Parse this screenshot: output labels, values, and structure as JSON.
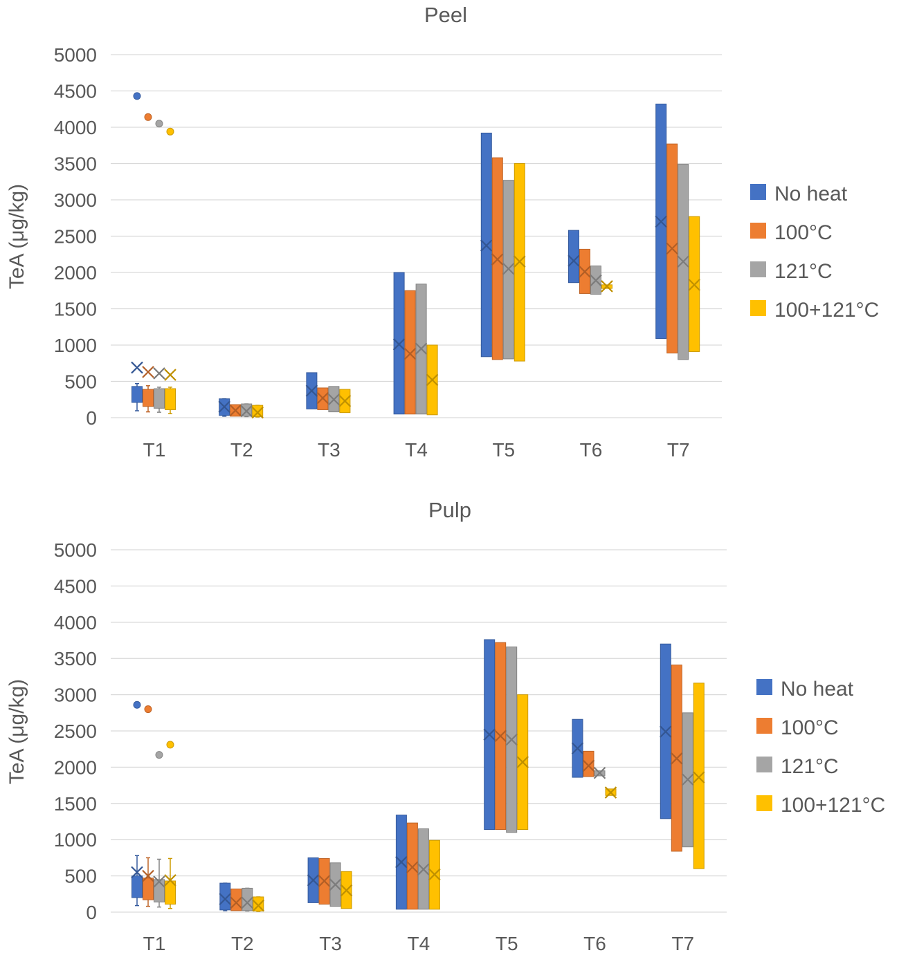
{
  "chart_data": [
    {
      "type": "box",
      "title": "Peel",
      "xlabel": "",
      "ylabel": "TeA (μg/kg)",
      "ylim": [
        0,
        5000
      ],
      "yticks": [
        "0",
        "500",
        "1000",
        "1500",
        "2000",
        "2500",
        "3000",
        "3500",
        "4000",
        "4500",
        "5000"
      ],
      "grid": true,
      "legend_position": "right",
      "categories": [
        "T1",
        "T2",
        "T3",
        "T4",
        "T5",
        "T6",
        "T7"
      ],
      "series": [
        {
          "name": "No heat",
          "color": "#4472c4",
          "boxes": [
            {
              "low": 95,
              "q1": 210,
              "q3": 430,
              "high": 470,
              "mean": 690,
              "outlier": 4430
            },
            {
              "low": 20,
              "q1": 30,
              "q3": 260,
              "high": 260,
              "mean": 150
            },
            {
              "low": 120,
              "q1": 120,
              "q3": 620,
              "high": 620,
              "mean": 370
            },
            {
              "low": 50,
              "q1": 50,
              "q3": 2000,
              "high": 2000,
              "mean": 1010
            },
            {
              "low": 840,
              "q1": 840,
              "q3": 3920,
              "high": 3920,
              "mean": 2370
            },
            {
              "low": 1860,
              "q1": 1860,
              "q3": 2580,
              "high": 2580,
              "mean": 2160
            },
            {
              "low": 1090,
              "q1": 1090,
              "q3": 4320,
              "high": 4320,
              "mean": 2700
            }
          ]
        },
        {
          "name": "100°C",
          "color": "#ed7d31",
          "boxes": [
            {
              "low": 80,
              "q1": 155,
              "q3": 390,
              "high": 440,
              "mean": 630,
              "outlier": 4140
            },
            {
              "low": 20,
              "q1": 20,
              "q3": 180,
              "high": 180,
              "mean": 100
            },
            {
              "low": 110,
              "q1": 110,
              "q3": 410,
              "high": 410,
              "mean": 270
            },
            {
              "low": 50,
              "q1": 50,
              "q3": 1750,
              "high": 1750,
              "mean": 880
            },
            {
              "low": 800,
              "q1": 800,
              "q3": 3580,
              "high": 3580,
              "mean": 2180
            },
            {
              "low": 1710,
              "q1": 1710,
              "q3": 2320,
              "high": 2320,
              "mean": 2010
            },
            {
              "low": 890,
              "q1": 890,
              "q3": 3770,
              "high": 3770,
              "mean": 2330
            }
          ]
        },
        {
          "name": "121°C",
          "color": "#a5a5a5",
          "boxes": [
            {
              "low": 75,
              "q1": 130,
              "q3": 400,
              "high": 420,
              "mean": 610,
              "outlier": 4050
            },
            {
              "low": 15,
              "q1": 20,
              "q3": 190,
              "high": 190,
              "mean": 90
            },
            {
              "low": 80,
              "q1": 80,
              "q3": 430,
              "high": 430,
              "mean": 250
            },
            {
              "low": 50,
              "q1": 50,
              "q3": 1840,
              "high": 1840,
              "mean": 950
            },
            {
              "low": 810,
              "q1": 810,
              "q3": 3270,
              "high": 3270,
              "mean": 2050
            },
            {
              "low": 1700,
              "q1": 1700,
              "q3": 2090,
              "high": 2090,
              "mean": 1890
            },
            {
              "low": 800,
              "q1": 800,
              "q3": 3490,
              "high": 3490,
              "mean": 2150
            }
          ]
        },
        {
          "name": "100+121°C",
          "color": "#ffc000",
          "boxes": [
            {
              "low": 55,
              "q1": 110,
              "q3": 400,
              "high": 420,
              "mean": 590,
              "outlier": 3940
            },
            {
              "low": 10,
              "q1": 15,
              "q3": 170,
              "high": 170,
              "mean": 70
            },
            {
              "low": 70,
              "q1": 70,
              "q3": 390,
              "high": 390,
              "mean": 230
            },
            {
              "low": 40,
              "q1": 40,
              "q3": 1000,
              "high": 1000,
              "mean": 520
            },
            {
              "low": 780,
              "q1": 780,
              "q3": 3500,
              "high": 3500,
              "mean": 2150
            },
            {
              "low": 1780,
              "q1": 1780,
              "q3": 1830,
              "high": 1830,
              "mean": 1810
            },
            {
              "low": 910,
              "q1": 910,
              "q3": 2770,
              "high": 2770,
              "mean": 1830
            }
          ]
        }
      ]
    },
    {
      "type": "box",
      "title": "Pulp",
      "xlabel": "",
      "ylabel": "TeA (μg/kg)",
      "ylim": [
        0,
        5000
      ],
      "yticks": [
        "0",
        "500",
        "1000",
        "1500",
        "2000",
        "2500",
        "3000",
        "3500",
        "4000",
        "4500",
        "5000"
      ],
      "grid": true,
      "legend_position": "right",
      "categories": [
        "T1",
        "T2",
        "T3",
        "T4",
        "T5",
        "T6",
        "T7"
      ],
      "series": [
        {
          "name": "No heat",
          "color": "#4472c4",
          "boxes": [
            {
              "low": 90,
              "q1": 200,
              "q3": 500,
              "high": 780,
              "mean": 550,
              "outlier": 2860
            },
            {
              "low": 20,
              "q1": 30,
              "q3": 400,
              "high": 400,
              "mean": 180
            },
            {
              "low": 130,
              "q1": 130,
              "q3": 750,
              "high": 750,
              "mean": 440
            },
            {
              "low": 40,
              "q1": 40,
              "q3": 1340,
              "high": 1340,
              "mean": 690
            },
            {
              "low": 1140,
              "q1": 1140,
              "q3": 3760,
              "high": 3760,
              "mean": 2450
            },
            {
              "low": 1860,
              "q1": 1860,
              "q3": 2660,
              "high": 2660,
              "mean": 2260
            },
            {
              "low": 1290,
              "q1": 1290,
              "q3": 3700,
              "high": 3700,
              "mean": 2490
            }
          ]
        },
        {
          "name": "100°C",
          "color": "#ed7d31",
          "boxes": [
            {
              "low": 80,
              "q1": 170,
              "q3": 470,
              "high": 750,
              "mean": 500,
              "outlier": 2800
            },
            {
              "low": 20,
              "q1": 20,
              "q3": 320,
              "high": 320,
              "mean": 130
            },
            {
              "low": 110,
              "q1": 110,
              "q3": 740,
              "high": 740,
              "mean": 430
            },
            {
              "low": 40,
              "q1": 40,
              "q3": 1230,
              "high": 1230,
              "mean": 620
            },
            {
              "low": 1140,
              "q1": 1140,
              "q3": 3720,
              "high": 3720,
              "mean": 2430
            },
            {
              "low": 1870,
              "q1": 1870,
              "q3": 2220,
              "high": 2220,
              "mean": 2020
            },
            {
              "low": 840,
              "q1": 840,
              "q3": 3410,
              "high": 3410,
              "mean": 2120
            }
          ]
        },
        {
          "name": "121°C",
          "color": "#a5a5a5",
          "boxes": [
            {
              "low": 70,
              "q1": 140,
              "q3": 450,
              "high": 730,
              "mean": 420,
              "outlier": 2170
            },
            {
              "low": 15,
              "q1": 20,
              "q3": 330,
              "high": 330,
              "mean": 130
            },
            {
              "low": 80,
              "q1": 80,
              "q3": 680,
              "high": 680,
              "mean": 380
            },
            {
              "low": 40,
              "q1": 40,
              "q3": 1150,
              "high": 1150,
              "mean": 590
            },
            {
              "low": 1100,
              "q1": 1100,
              "q3": 3660,
              "high": 3660,
              "mean": 2380
            },
            {
              "low": 1880,
              "q1": 1880,
              "q3": 1950,
              "high": 1950,
              "mean": 1920
            },
            {
              "low": 900,
              "q1": 900,
              "q3": 2750,
              "high": 2750,
              "mean": 1830
            }
          ]
        },
        {
          "name": "100+121°C",
          "color": "#ffc000",
          "boxes": [
            {
              "low": 50,
              "q1": 110,
              "q3": 430,
              "high": 740,
              "mean": 440,
              "outlier": 2310
            },
            {
              "low": 10,
              "q1": 15,
              "q3": 210,
              "high": 210,
              "mean": 90
            },
            {
              "low": 50,
              "q1": 50,
              "q3": 560,
              "high": 560,
              "mean": 300
            },
            {
              "low": 40,
              "q1": 40,
              "q3": 990,
              "high": 990,
              "mean": 520
            },
            {
              "low": 1140,
              "q1": 1140,
              "q3": 3000,
              "high": 3000,
              "mean": 2070
            },
            {
              "low": 1610,
              "q1": 1610,
              "q3": 1700,
              "high": 1700,
              "mean": 1650
            },
            {
              "low": 600,
              "q1": 600,
              "q3": 3160,
              "high": 3160,
              "mean": 1860
            }
          ]
        }
      ]
    }
  ]
}
